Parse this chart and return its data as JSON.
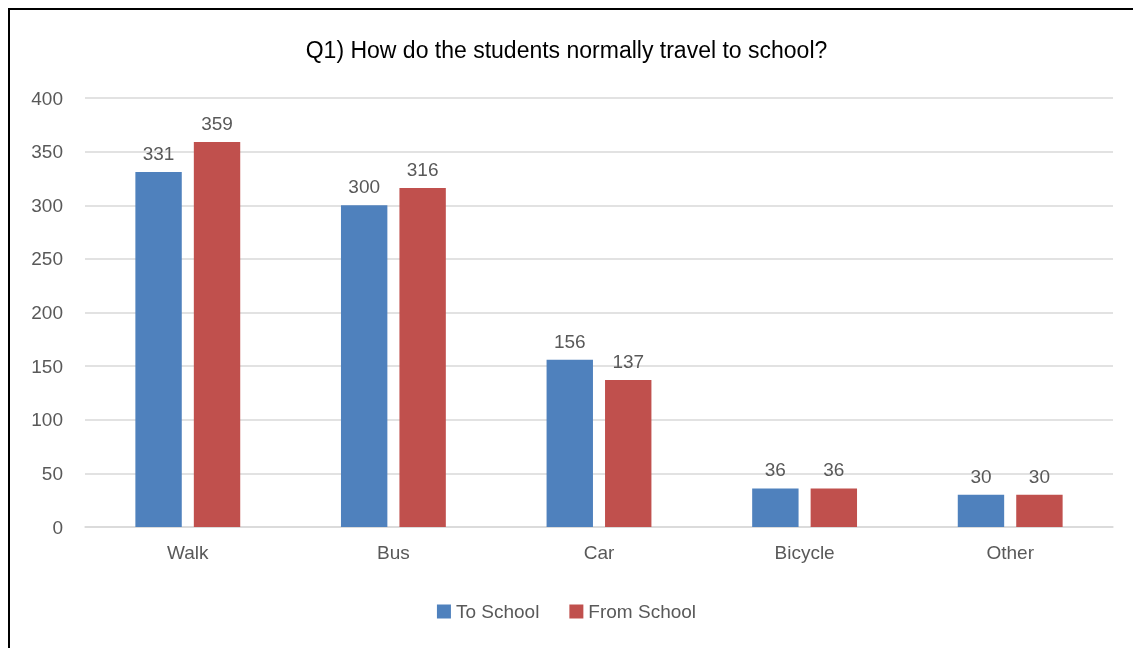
{
  "chart_data": {
    "type": "bar",
    "title": "Q1) How do the students normally travel to school?",
    "categories": [
      "Walk",
      "Bus",
      "Car",
      "Bicycle",
      "Other"
    ],
    "series": [
      {
        "name": "To School",
        "color": "#4f81bd",
        "values": [
          331,
          300,
          156,
          36,
          30
        ]
      },
      {
        "name": "From School",
        "color": "#c0504d",
        "values": [
          359,
          316,
          137,
          36,
          30
        ]
      }
    ],
    "ylim": [
      0,
      400
    ],
    "yticks": [
      0,
      50,
      100,
      150,
      200,
      250,
      300,
      350,
      400
    ],
    "grid": "y",
    "legend": "bottom",
    "data_labels": true
  }
}
